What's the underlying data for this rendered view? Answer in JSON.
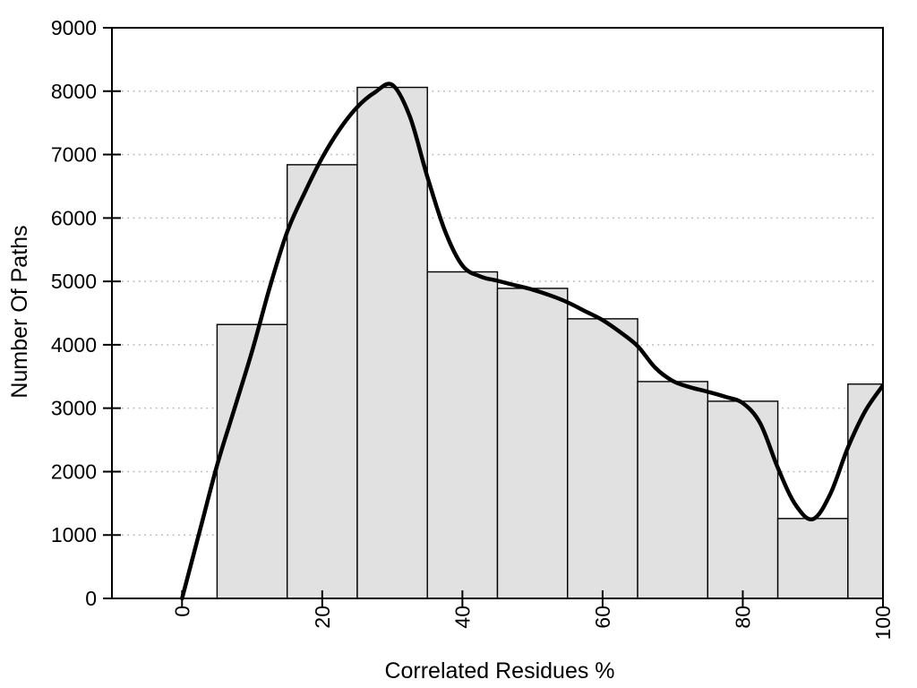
{
  "chart_data": {
    "type": "bar",
    "subtype": "histogram-with-smoothed-curve",
    "title": "",
    "xlabel": "Correlated Residues %",
    "ylabel": "Number Of Paths",
    "xlim": [
      -10,
      100
    ],
    "ylim": [
      0,
      9000
    ],
    "x_ticks": [
      0,
      20,
      40,
      60,
      80,
      100
    ],
    "y_ticks": [
      0,
      1000,
      2000,
      3000,
      4000,
      5000,
      6000,
      7000,
      8000,
      9000
    ],
    "x_tick_labels_rotated_degrees": -90,
    "grid": "horizontal dotted lines at each y tick",
    "legend": "none",
    "bars": {
      "bin_edges": [
        5,
        15,
        25,
        35,
        45,
        55,
        65,
        75,
        85,
        95,
        100
      ],
      "counts": [
        4320,
        6840,
        8060,
        5150,
        4890,
        4410,
        3420,
        3110,
        1260,
        3380
      ],
      "fill_color": "#e1e1e1",
      "border_color": "#000000"
    },
    "curve": {
      "name": "smoothed-distribution-curve",
      "color": "#000000",
      "stroke_width": 4.5,
      "points": [
        [
          0,
          0
        ],
        [
          2.5,
          1050
        ],
        [
          5,
          2100
        ],
        [
          7.5,
          3000
        ],
        [
          10,
          3900
        ],
        [
          12.5,
          4900
        ],
        [
          15,
          5780
        ],
        [
          17.5,
          6400
        ],
        [
          20,
          6950
        ],
        [
          22.5,
          7400
        ],
        [
          25,
          7750
        ],
        [
          27.5,
          7980
        ],
        [
          30,
          8100
        ],
        [
          32.5,
          7600
        ],
        [
          35,
          6650
        ],
        [
          37.5,
          5800
        ],
        [
          40,
          5250
        ],
        [
          42.5,
          5080
        ],
        [
          45,
          5010
        ],
        [
          47.5,
          4940
        ],
        [
          50,
          4870
        ],
        [
          52.5,
          4780
        ],
        [
          55,
          4670
        ],
        [
          57.5,
          4530
        ],
        [
          60,
          4390
        ],
        [
          62.5,
          4200
        ],
        [
          65,
          3980
        ],
        [
          67.5,
          3640
        ],
        [
          70,
          3430
        ],
        [
          72.5,
          3330
        ],
        [
          75,
          3260
        ],
        [
          77.5,
          3180
        ],
        [
          80,
          3080
        ],
        [
          82.5,
          2760
        ],
        [
          85,
          2060
        ],
        [
          87.5,
          1480
        ],
        [
          90,
          1250
        ],
        [
          92.5,
          1650
        ],
        [
          95,
          2380
        ],
        [
          97.5,
          2960
        ],
        [
          100,
          3360
        ]
      ]
    },
    "colors": {
      "background": "#ffffff",
      "axis": "#000000",
      "gridline": "#b5b5b5",
      "text": "#000000"
    }
  }
}
